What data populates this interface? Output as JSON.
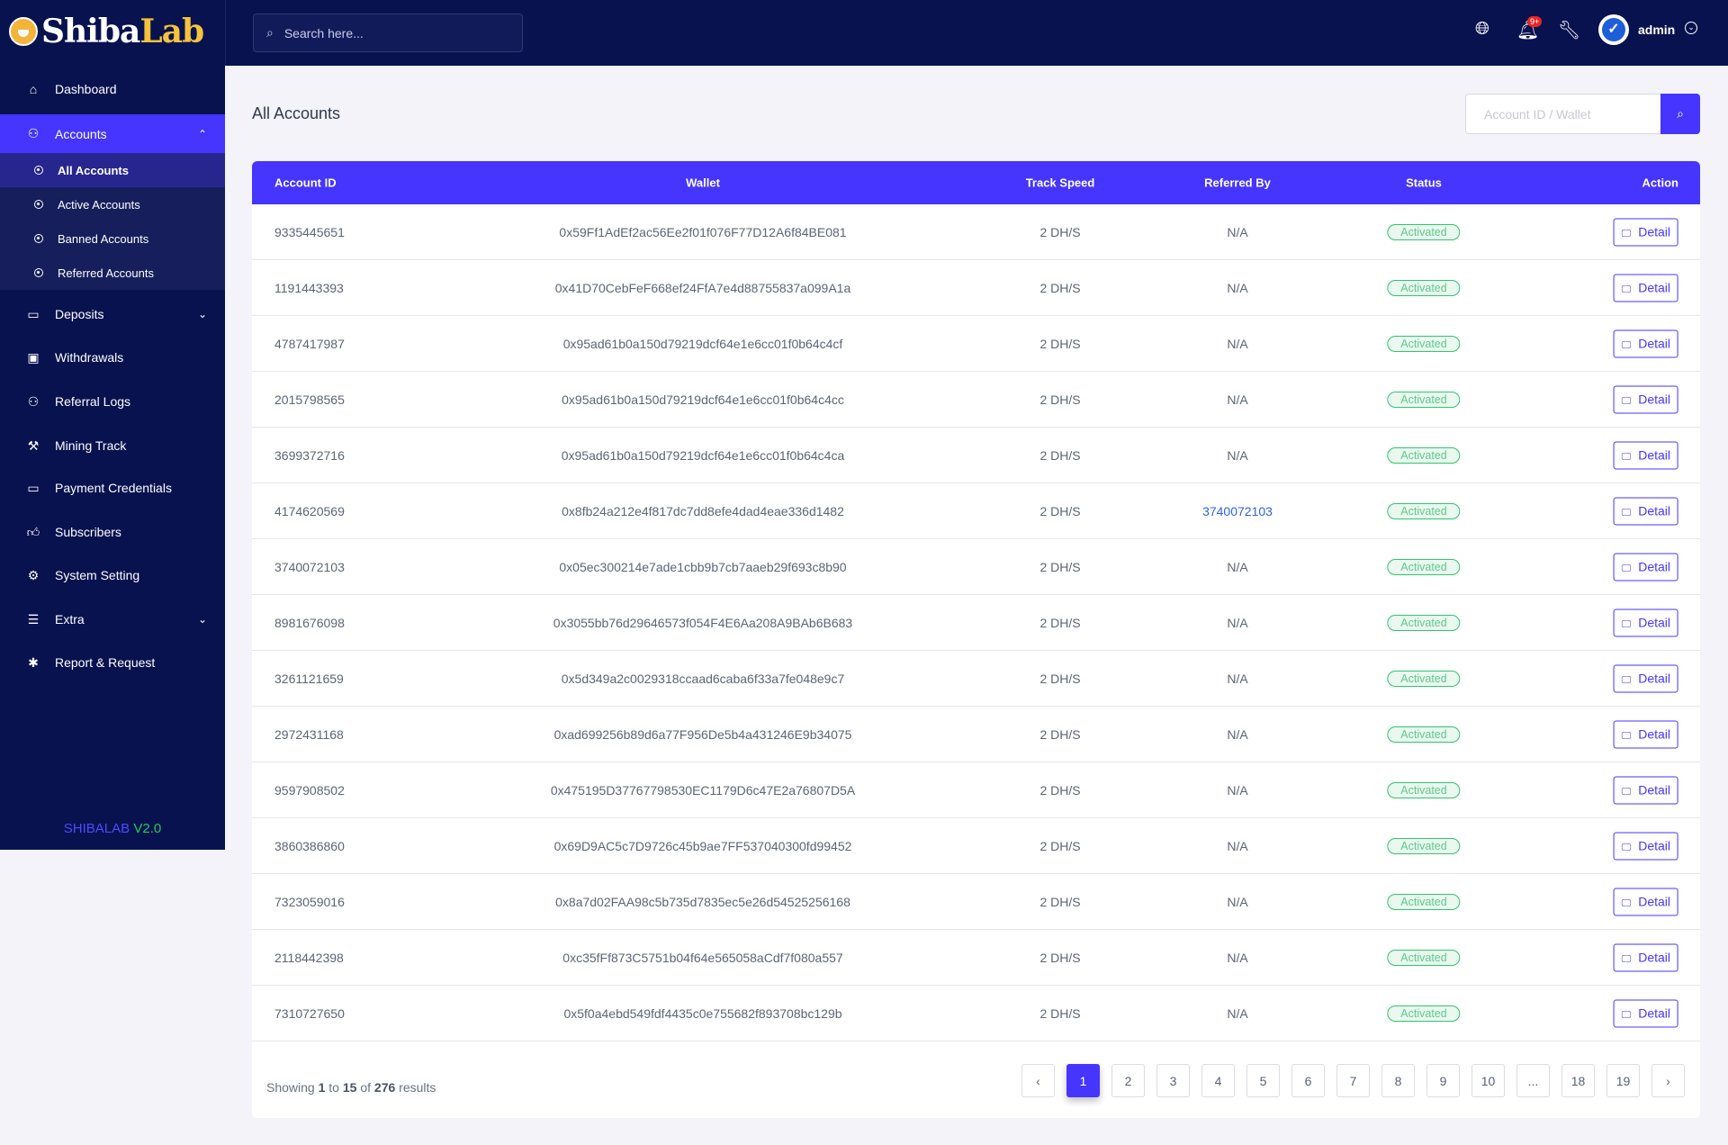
{
  "brand": {
    "part1": "Shiba",
    "part2": "Lab",
    "version_name": "SHIBALAB",
    "version_number": "V2.0"
  },
  "topbar": {
    "search_placeholder": "Search here...",
    "notification_badge": "9+",
    "user": "admin"
  },
  "sidebar": {
    "items": [
      {
        "label": "Dashboard",
        "icon": "home-icon"
      },
      {
        "label": "Accounts",
        "icon": "users-icon",
        "expanded": true
      },
      {
        "label": "Deposits",
        "icon": "wallet-icon"
      },
      {
        "label": "Withdrawals",
        "icon": "money-icon"
      },
      {
        "label": "Referral Logs",
        "icon": "referral-icon"
      },
      {
        "label": "Mining Track",
        "icon": "hammer-icon"
      },
      {
        "label": "Payment Credentials",
        "icon": "credit-card-icon"
      },
      {
        "label": "Subscribers",
        "icon": "thumbs-up-icon"
      },
      {
        "label": "System Setting",
        "icon": "settings-icon"
      },
      {
        "label": "Extra",
        "icon": "list-icon"
      },
      {
        "label": "Report & Request",
        "icon": "bug-icon"
      }
    ],
    "sub_items": [
      {
        "label": "All Accounts",
        "active": true
      },
      {
        "label": "Active Accounts"
      },
      {
        "label": "Banned Accounts"
      },
      {
        "label": "Referred Accounts"
      }
    ]
  },
  "main": {
    "title": "All Accounts",
    "search_placeholder": "Account ID / Wallet",
    "columns": [
      "Account ID",
      "Wallet",
      "Track Speed",
      "Referred By",
      "Status",
      "Action"
    ],
    "detail_label": "Detail",
    "rows": [
      {
        "id": "9335445651",
        "wallet": "0x59Ff1AdEf2ac56Ee2f01f076F77D12A6f84BE081",
        "speed": "2 DH/S",
        "ref": "N/A",
        "status": "Activated"
      },
      {
        "id": "1191443393",
        "wallet": "0x41D70CebFeF668ef24FfA7e4d88755837a099A1a",
        "speed": "2 DH/S",
        "ref": "N/A",
        "status": "Activated"
      },
      {
        "id": "4787417987",
        "wallet": "0x95ad61b0a150d79219dcf64e1e6cc01f0b64c4cf",
        "speed": "2 DH/S",
        "ref": "N/A",
        "status": "Activated"
      },
      {
        "id": "2015798565",
        "wallet": "0x95ad61b0a150d79219dcf64e1e6cc01f0b64c4cc",
        "speed": "2 DH/S",
        "ref": "N/A",
        "status": "Activated"
      },
      {
        "id": "3699372716",
        "wallet": "0x95ad61b0a150d79219dcf64e1e6cc01f0b64c4ca",
        "speed": "2 DH/S",
        "ref": "N/A",
        "status": "Activated"
      },
      {
        "id": "4174620569",
        "wallet": "0x8fb24a212e4f817dc7dd8efe4dad4eae336d1482",
        "speed": "2 DH/S",
        "ref": "3740072103",
        "status": "Activated"
      },
      {
        "id": "3740072103",
        "wallet": "0x05ec300214e7ade1cbb9b7cb7aaeb29f693c8b90",
        "speed": "2 DH/S",
        "ref": "N/A",
        "status": "Activated"
      },
      {
        "id": "8981676098",
        "wallet": "0x3055bb76d29646573f054F4E6Aa208A9BAb6B683",
        "speed": "2 DH/S",
        "ref": "N/A",
        "status": "Activated"
      },
      {
        "id": "3261121659",
        "wallet": "0x5d349a2c0029318ccaad6caba6f33a7fe048e9c7",
        "speed": "2 DH/S",
        "ref": "N/A",
        "status": "Activated"
      },
      {
        "id": "2972431168",
        "wallet": "0xad699256b89d6a77F956De5b4a431246E9b34075",
        "speed": "2 DH/S",
        "ref": "N/A",
        "status": "Activated"
      },
      {
        "id": "9597908502",
        "wallet": "0x475195D37767798530EC1179D6c47E2a76807D5A",
        "speed": "2 DH/S",
        "ref": "N/A",
        "status": "Activated"
      },
      {
        "id": "3860386860",
        "wallet": "0x69D9AC5c7D9726c45b9ae7FF537040300fd99452",
        "speed": "2 DH/S",
        "ref": "N/A",
        "status": "Activated"
      },
      {
        "id": "7323059016",
        "wallet": "0x8a7d02FAA98c5b735d7835ec5e26d54525256168",
        "speed": "2 DH/S",
        "ref": "N/A",
        "status": "Activated"
      },
      {
        "id": "2118442398",
        "wallet": "0xc35fFf873C5751b04f64e565058aCdf7f080a557",
        "speed": "2 DH/S",
        "ref": "N/A",
        "status": "Activated"
      },
      {
        "id": "7310727650",
        "wallet": "0x5f0a4ebd549fdf4435c0e755682f893708bc129b",
        "speed": "2 DH/S",
        "ref": "N/A",
        "status": "Activated"
      }
    ],
    "footer": {
      "showing": "Showing",
      "from": "1",
      "to_word": "to",
      "to": "15",
      "of_word": "of",
      "total": "276",
      "results": "results"
    },
    "pagination": [
      "‹",
      "1",
      "2",
      "3",
      "4",
      "5",
      "6",
      "7",
      "8",
      "9",
      "10",
      "...",
      "18",
      "19",
      "›"
    ],
    "current_page": "1"
  },
  "colors": {
    "sidebar": "#08124f",
    "accent": "#4535ff",
    "status": "#2fc76b"
  }
}
